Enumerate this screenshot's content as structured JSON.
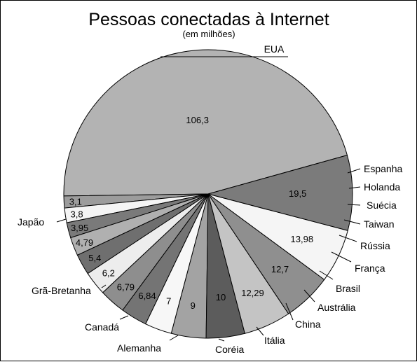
{
  "chart_data": {
    "type": "pie",
    "title": "Pessoas conectadas à Internet",
    "subtitle": "(em milhões)",
    "legend": "none",
    "slices": [
      {
        "label": "EUA",
        "display": "106,3",
        "value": 106.3,
        "color": "#b3b3b3"
      },
      {
        "label": "Espanha",
        "display": "3,1",
        "value": 3.1,
        "color": "#9c9c9c"
      },
      {
        "label": "Holanda",
        "display": "3,8",
        "value": 3.8,
        "color": "#f4f4f4"
      },
      {
        "label": "Suécia",
        "display": "3,95",
        "value": 3.95,
        "color": "#7a7a7a"
      },
      {
        "label": "Taiwan",
        "display": "4,79",
        "value": 4.79,
        "color": "#b0b0b0"
      },
      {
        "label": "Rússia",
        "display": "5,4",
        "value": 5.4,
        "color": "#6f6f6f"
      },
      {
        "label": "França",
        "display": "6,2",
        "value": 6.2,
        "color": "#ededed"
      },
      {
        "label": "Brasil",
        "display": "6,79",
        "value": 6.79,
        "color": "#8e8e8e"
      },
      {
        "label": "Austrália",
        "display": "6,84",
        "value": 6.84,
        "color": "#747474"
      },
      {
        "label": "China",
        "display": "7",
        "value": 7,
        "color": "#f7f7f7"
      },
      {
        "label": "Itália",
        "display": "9",
        "value": 9,
        "color": "#a3a3a3"
      },
      {
        "label": "Coréia",
        "display": "10",
        "value": 10,
        "color": "#5c5c5c"
      },
      {
        "label": "Alemanha",
        "display": "12,29",
        "value": 12.29,
        "color": "#c4c4c4"
      },
      {
        "label": "Canadá",
        "display": "12,7",
        "value": 12.7,
        "color": "#8f8f8f"
      },
      {
        "label": "Grã-Bretanha",
        "display": "13,98",
        "value": 13.98,
        "color": "#f5f5f5"
      },
      {
        "label": "Japão",
        "display": "19,5",
        "value": 19.5,
        "color": "#7b7b7b"
      }
    ]
  }
}
